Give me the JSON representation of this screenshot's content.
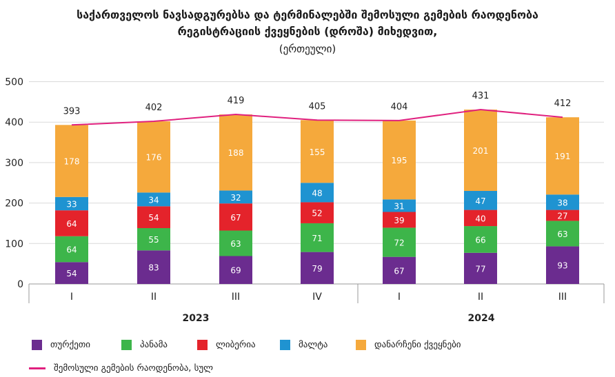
{
  "title_line1": "საქართველოს ნავსადგურებსა და ტერმინალებში შემოსული გემების რაოდენობა",
  "title_line2": "რეგისტრაციის ქვეყნების (დროშა) მიხედვით,",
  "subtitle": "(ერთეული)",
  "colors": {
    "turkey": "#6B2C8F",
    "panama": "#3DB54A",
    "liberia": "#E4232B",
    "malta": "#1F93D1",
    "other": "#F5A93C",
    "total": "#E0207E"
  },
  "legend": {
    "turkey": "თურქეთი",
    "panama": "პანამა",
    "liberia": "ლიბერია",
    "malta": "მალტა",
    "other": "დანარჩენი ქვეყნები",
    "total": "შემოსული გემების რაოდენობა, სულ"
  },
  "chart_data": {
    "type": "bar",
    "stacked": true,
    "title": "საქართველოს ნავსადგურებსა და ტერმინალებში შემოსული გემების რაოდენობა რეგისტრაციის ქვეყნების (დროშა) მიხედვით,",
    "subtitle": "(ერთეული)",
    "categories": [
      "I",
      "II",
      "III",
      "IV",
      "I",
      "II",
      "III"
    ],
    "groups": [
      {
        "label": "2023",
        "periods": [
          "I",
          "II",
          "III",
          "IV"
        ]
      },
      {
        "label": "2024",
        "periods": [
          "I",
          "II",
          "III"
        ]
      }
    ],
    "ylim": [
      0,
      500
    ],
    "yticks": [
      0,
      100,
      200,
      300,
      400,
      500
    ],
    "series": [
      {
        "name": "თურქეთი",
        "key": "turkey",
        "values": [
          54,
          83,
          69,
          79,
          67,
          77,
          93
        ]
      },
      {
        "name": "პანამა",
        "key": "panama",
        "values": [
          64,
          55,
          63,
          71,
          72,
          66,
          63
        ]
      },
      {
        "name": "ლიბერია",
        "key": "liberia",
        "values": [
          64,
          54,
          67,
          52,
          39,
          40,
          27
        ]
      },
      {
        "name": "მალტა",
        "key": "malta",
        "values": [
          33,
          34,
          32,
          48,
          31,
          47,
          38
        ]
      },
      {
        "name": "დანარჩენი ქვეყნები",
        "key": "other",
        "values": [
          178,
          176,
          188,
          155,
          195,
          201,
          191
        ]
      }
    ],
    "line": {
      "name": "შემოსული გემების რაოდენობა, სულ",
      "key": "total",
      "values": [
        393,
        402,
        419,
        405,
        404,
        431,
        412
      ]
    },
    "grid": true,
    "legend_position": "bottom"
  }
}
